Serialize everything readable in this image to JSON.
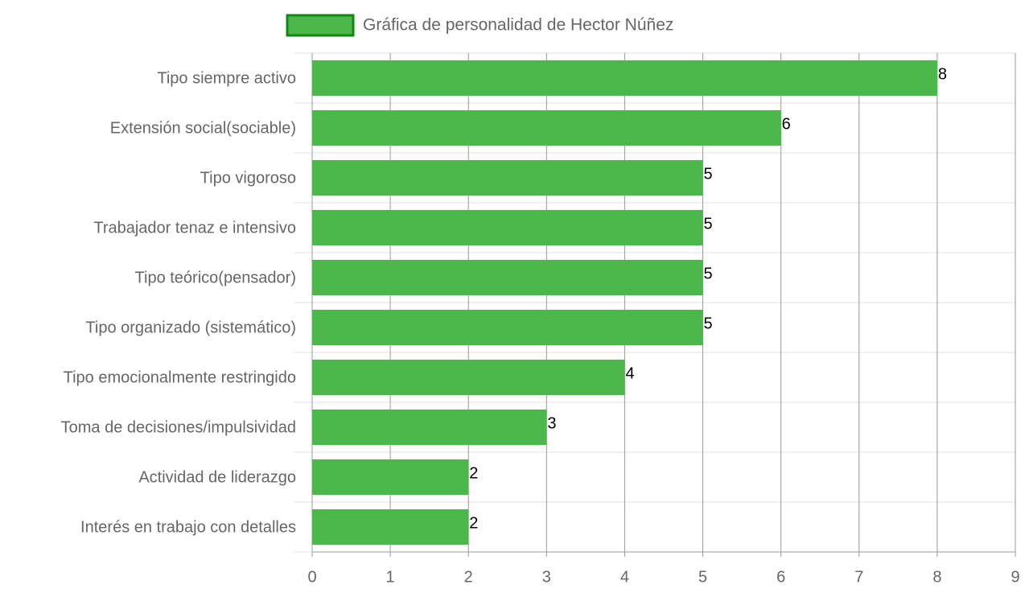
{
  "chart_data": {
    "type": "bar",
    "orientation": "horizontal",
    "categories": [
      "Tipo siempre activo",
      "Extensión social(sociable)",
      "Tipo vigoroso",
      "Trabajador tenaz e intensivo",
      "Tipo teórico(pensador)",
      "Tipo organizado (sistemático)",
      "Tipo emocionalmente restringido",
      "Toma de decisiones/impulsividad",
      "Actividad de liderazgo",
      "Interés en trabajo con detalles"
    ],
    "series": [
      {
        "name": "Gráfica de personalidad de Hector Núñez",
        "color": "#4cb84c",
        "border_color": "#118811",
        "values": [
          8,
          6,
          5,
          5,
          5,
          5,
          4,
          3,
          2,
          2
        ]
      }
    ],
    "xlim": [
      0,
      9
    ],
    "xticks": [
      0,
      1,
      2,
      3,
      4,
      5,
      6,
      7,
      8,
      9
    ],
    "grid": true,
    "legend": "top"
  }
}
